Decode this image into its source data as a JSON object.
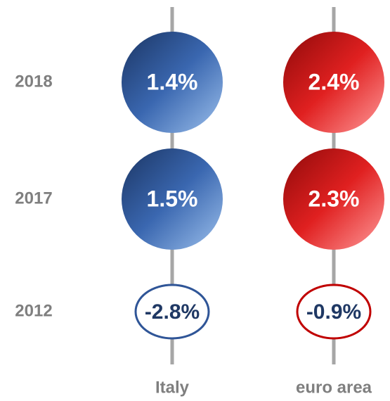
{
  "chart_data": {
    "type": "bubble",
    "categories": [
      "2018",
      "2017",
      "2012"
    ],
    "series": [
      {
        "name": "Italy",
        "color": "#2f5597",
        "values": [
          1.4,
          1.5,
          -2.8
        ],
        "value_labels": [
          "1.4%",
          "1.5%",
          "-2.8%"
        ]
      },
      {
        "name": "euro area",
        "color": "#c00000",
        "values": [
          2.4,
          2.3,
          -0.9
        ],
        "value_labels": [
          "2.4%",
          "2.3%",
          "-0.9%"
        ]
      }
    ]
  }
}
